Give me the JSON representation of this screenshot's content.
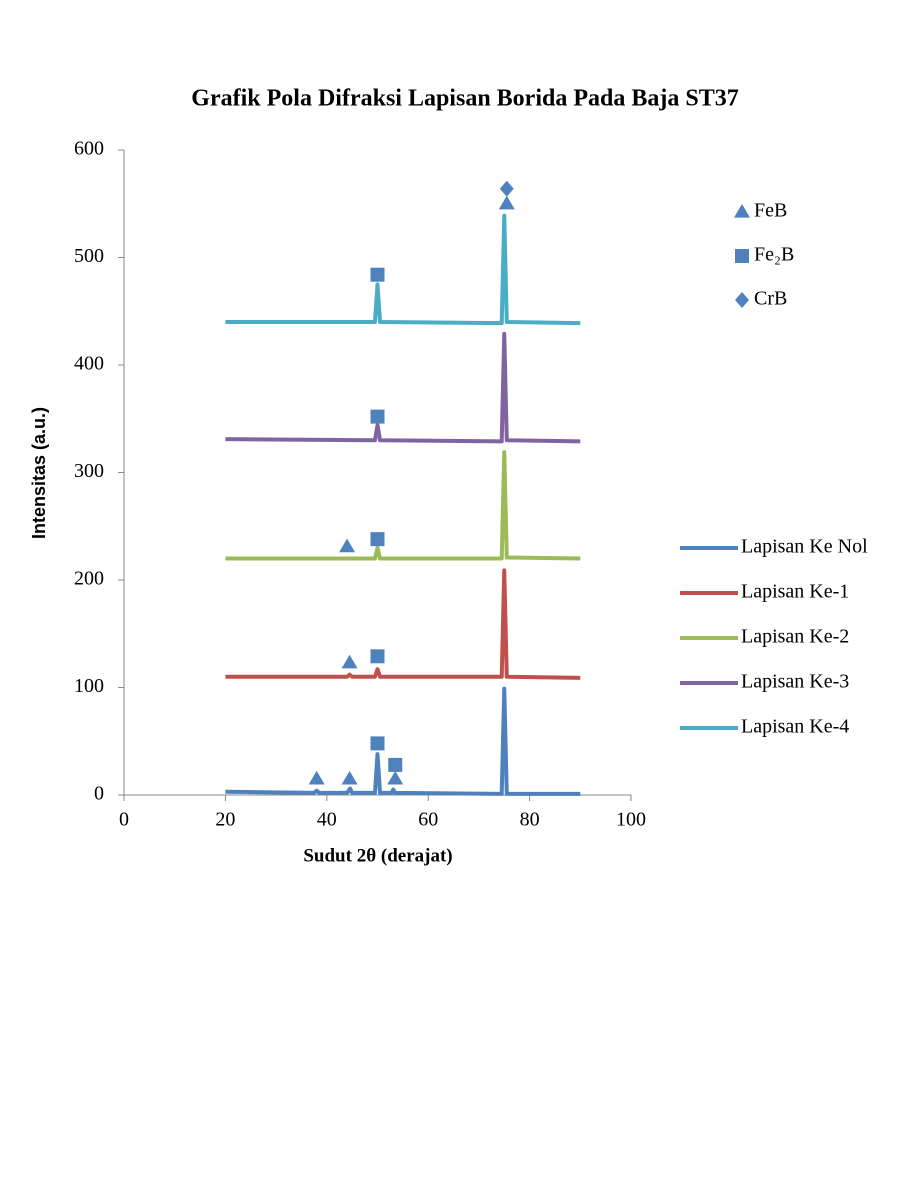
{
  "chart_data": {
    "type": "line",
    "title": "Grafik Pola Difraksi Lapisan Borida Pada Baja ST37",
    "x_label": "Sudut 2θ (derajat)",
    "y_label": "Intensitas (a.u.)",
    "xlim": [
      0,
      100
    ],
    "xticks": [
      0,
      20,
      40,
      60,
      80,
      100
    ],
    "ylim": [
      0,
      600
    ],
    "yticks": [
      0,
      100,
      200,
      300,
      400,
      500,
      600
    ],
    "series": [
      {
        "name": "Lapisan Ke Nol",
        "color": "#4f81bd",
        "x": [
          20,
          37.5,
          38,
          38.5,
          44,
          44.6,
          45,
          49.5,
          50,
          50.5,
          52.8,
          53.1,
          53.5,
          74.5,
          75,
          75.5,
          90
        ],
        "values": [
          3,
          2,
          4,
          2,
          2,
          6,
          2,
          2,
          38,
          2,
          2,
          5,
          2,
          1,
          99,
          1,
          1
        ]
      },
      {
        "name": "Lapisan Ke-1",
        "color": "#c0504d",
        "x": [
          20,
          44,
          44.5,
          45,
          49.5,
          50,
          50.5,
          74.5,
          75,
          75.5,
          90
        ],
        "values": [
          110,
          110,
          112,
          110,
          110,
          117,
          110,
          110,
          209,
          110,
          109
        ]
      },
      {
        "name": "Lapisan Ke-2",
        "color": "#9bbb59",
        "x": [
          20,
          49.5,
          50,
          50.5,
          74.5,
          75,
          75.5,
          90
        ],
        "values": [
          220,
          220,
          230,
          220,
          220,
          319,
          221,
          220
        ]
      },
      {
        "name": "Lapisan Ke-3",
        "color": "#8064a2",
        "x": [
          20,
          49.5,
          50,
          50.5,
          74.5,
          75,
          75.5,
          90
        ],
        "values": [
          331,
          330,
          344,
          330,
          329,
          429,
          330,
          329
        ]
      },
      {
        "name": "Lapisan Ke-4",
        "color": "#4bacc6",
        "x": [
          20,
          49.5,
          50,
          50.5,
          74.5,
          75,
          75.5,
          90
        ],
        "values": [
          440,
          440,
          475,
          440,
          439,
          539,
          440,
          439
        ]
      }
    ],
    "phases": [
      {
        "name": "FeB",
        "shape": "triangle",
        "color": "#4f81bd"
      },
      {
        "name": "Fe₂B",
        "shape": "square",
        "color": "#4f81bd"
      },
      {
        "name": "CrB",
        "shape": "diamond",
        "color": "#4f81bd"
      }
    ],
    "markers": [
      {
        "phase": 0,
        "x": 38,
        "y": 15
      },
      {
        "phase": 0,
        "x": 44.5,
        "y": 15
      },
      {
        "phase": 0,
        "x": 53.5,
        "y": 15
      },
      {
        "phase": 1,
        "x": 50,
        "y": 48
      },
      {
        "phase": 1,
        "x": 53.5,
        "y": 28
      },
      {
        "phase": 0,
        "x": 44.5,
        "y": 123
      },
      {
        "phase": 1,
        "x": 50,
        "y": 129
      },
      {
        "phase": 0,
        "x": 44,
        "y": 231
      },
      {
        "phase": 1,
        "x": 50,
        "y": 238
      },
      {
        "phase": 1,
        "x": 50,
        "y": 352
      },
      {
        "phase": 1,
        "x": 50,
        "y": 484
      },
      {
        "phase": 0,
        "x": 75.5,
        "y": 550
      },
      {
        "phase": 2,
        "x": 75.5,
        "y": 564
      }
    ]
  }
}
